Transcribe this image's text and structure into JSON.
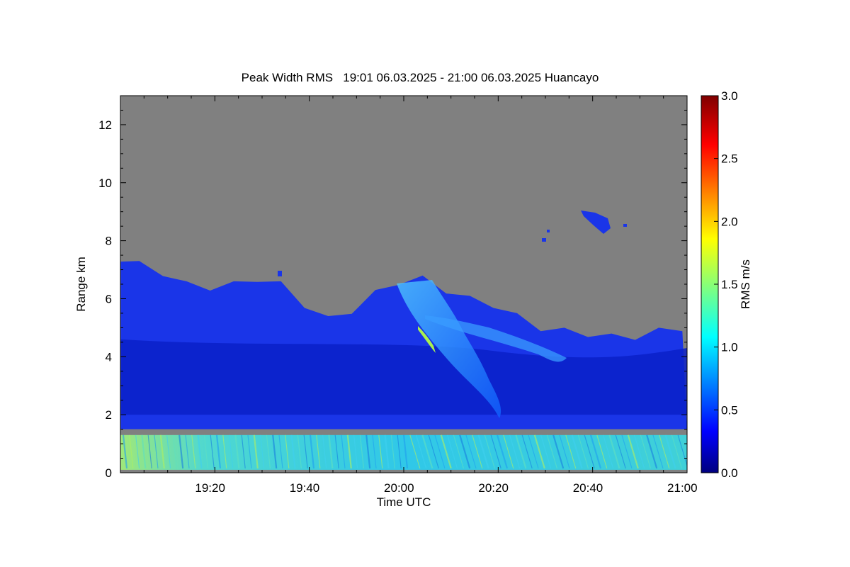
{
  "chart_data": {
    "type": "heatmap",
    "title": "Peak Width RMS   19:01 06.03.2025 - 21:00 06.03.2025 Huancayo",
    "xlabel": "Time UTC",
    "ylabel": "Range km",
    "x_range": [
      "19:01",
      "21:01"
    ],
    "y_range": [
      0,
      13
    ],
    "x_ticks": [
      {
        "label": "19:20",
        "minutes": 20
      },
      {
        "label": "19:40",
        "minutes": 40
      },
      {
        "label": "20:00",
        "minutes": 60
      },
      {
        "label": "20:20",
        "minutes": 80
      },
      {
        "label": "20:40",
        "minutes": 100
      },
      {
        "label": "21:00",
        "minutes": 120
      }
    ],
    "y_ticks": [
      0,
      2,
      4,
      6,
      8,
      10,
      12
    ],
    "colorbar": {
      "label": "RMS m/s",
      "range": [
        0.0,
        3.0
      ],
      "ticks": [
        "0.0",
        "0.5",
        "1.0",
        "1.5",
        "2.0",
        "2.5",
        "3.0"
      ],
      "colormap": "jet"
    },
    "no_data_color": "#808080",
    "cloud_top_km": [
      {
        "t": "19:01",
        "top": 7.4
      },
      {
        "t": "19:05",
        "top": 7.2
      },
      {
        "t": "19:10",
        "top": 6.9
      },
      {
        "t": "19:15",
        "top": 6.5
      },
      {
        "t": "19:20",
        "top": 6.4
      },
      {
        "t": "19:25",
        "top": 6.5
      },
      {
        "t": "19:30",
        "top": 6.7
      },
      {
        "t": "19:35",
        "top": 6.5
      },
      {
        "t": "19:40",
        "top": 5.8
      },
      {
        "t": "19:45",
        "top": 5.3
      },
      {
        "t": "19:50",
        "top": 5.6
      },
      {
        "t": "19:55",
        "top": 6.2
      },
      {
        "t": "20:00",
        "top": 6.6
      },
      {
        "t": "20:05",
        "top": 6.7
      },
      {
        "t": "20:10",
        "top": 6.3
      },
      {
        "t": "20:15",
        "top": 6.0
      },
      {
        "t": "20:20",
        "top": 5.8
      },
      {
        "t": "20:25",
        "top": 5.4
      },
      {
        "t": "20:30",
        "top": 5.0
      },
      {
        "t": "20:35",
        "top": 4.9
      },
      {
        "t": "20:40",
        "top": 4.8
      },
      {
        "t": "20:45",
        "top": 4.7
      },
      {
        "t": "20:50",
        "top": 4.7
      },
      {
        "t": "20:55",
        "top": 4.9
      },
      {
        "t": "21:00",
        "top": 5.0
      }
    ],
    "gap_band_km": [
      1.3,
      1.5
    ],
    "near_surface_rms_m_s": 1.1,
    "cloud_rms_m_s": 0.3,
    "plume_rms_m_s": 0.9
  }
}
